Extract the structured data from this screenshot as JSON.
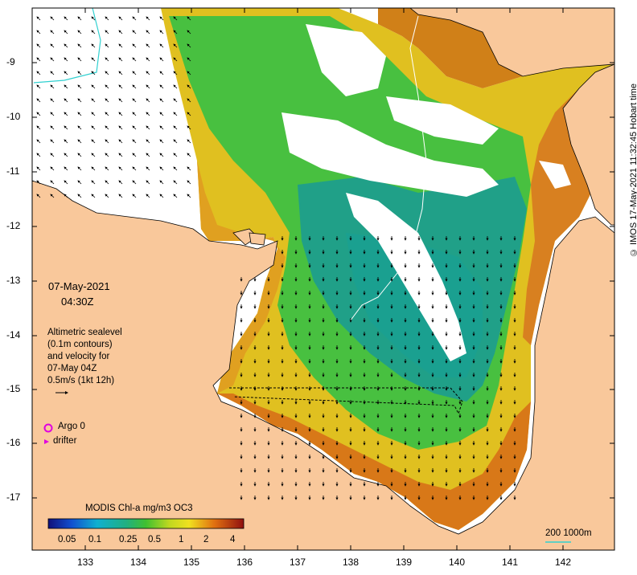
{
  "title": {
    "date": "07-May-2021",
    "time": "04:30Z"
  },
  "info": {
    "line1": "Altimetric sealevel",
    "line2": "(0.1m contours)",
    "line3": "and velocity for",
    "line4": "07-May 04Z",
    "scale_label": "0.5m/s (1kt 12h)"
  },
  "legend": {
    "argo": "Argo 0",
    "drifter": "drifter",
    "colorbar_title": "MODIS Chl-a mg/m3 OC3",
    "colorbar_ticks": [
      "0.05",
      "0.1",
      "0.25",
      "0.5",
      "1",
      "2",
      "4"
    ],
    "depth_label": "200  1000m"
  },
  "axes": {
    "x_ticks": [
      "133",
      "134",
      "135",
      "136",
      "137",
      "138",
      "139",
      "140",
      "141",
      "142"
    ],
    "y_ticks": [
      "-9",
      "-10",
      "-11",
      "-12",
      "-13",
      "-14",
      "-15",
      "-16",
      "-17"
    ]
  },
  "credit": "© IMOS 17-May-2021 11:32:45 Hobart time",
  "colors": {
    "land": "#f9c89b",
    "high_chl": "#c96a15",
    "mid_chl": "#e8c020",
    "low_chl": "#30b040",
    "very_low_chl": "#20a080",
    "cloud": "#ffffff",
    "argo": "#e000e0"
  }
}
